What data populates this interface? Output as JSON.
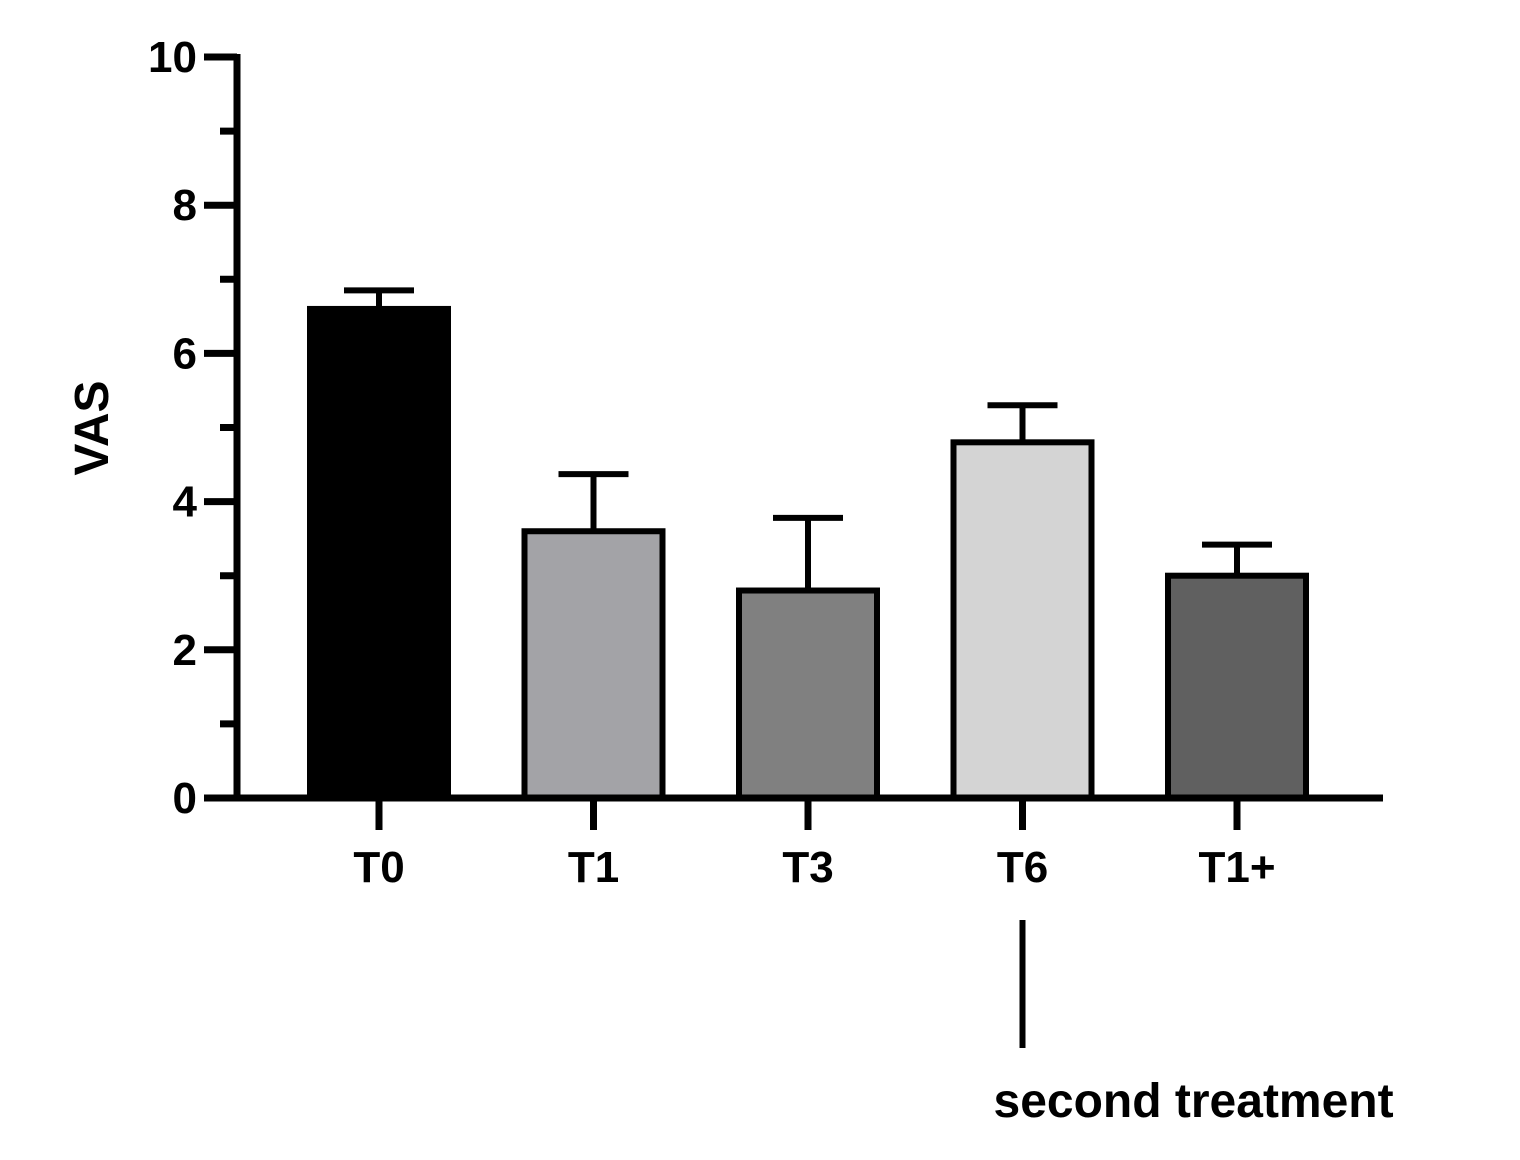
{
  "chart_data": {
    "type": "bar",
    "title": "",
    "xlabel": "",
    "ylabel": "VAS",
    "ylim": [
      0,
      10
    ],
    "yticks": [
      0,
      2,
      4,
      6,
      8,
      10
    ],
    "categories": [
      "T0",
      "T1",
      "T3",
      "T6",
      "T1+"
    ],
    "values": [
      6.6,
      3.6,
      2.8,
      4.8,
      3.0
    ],
    "error_upper": [
      6.85,
      4.37,
      3.78,
      5.3,
      3.42
    ],
    "bar_colors": [
      "#000000",
      "#a3a3a7",
      "#808080",
      "#d4d4d4",
      "#606060"
    ],
    "grid": false,
    "legend": "none",
    "annotations": [
      {
        "text": "second treatment",
        "category": "T6"
      }
    ]
  }
}
